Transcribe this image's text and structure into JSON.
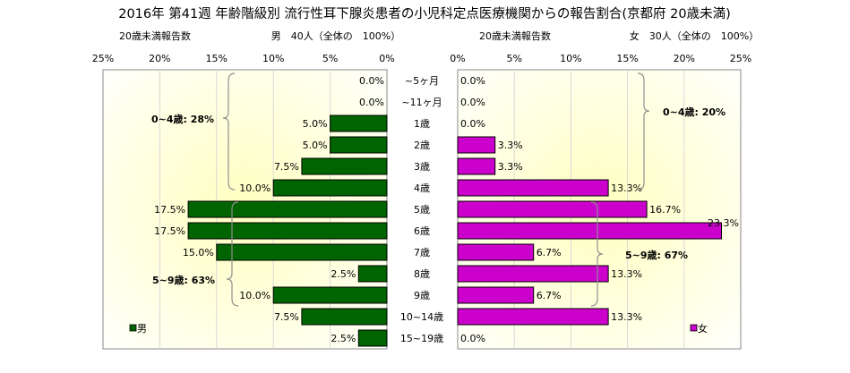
{
  "chart_data": {
    "type": "bar",
    "title": "2016年 第41週 年齢階級別 流行性耳下腺炎患者の小児科定点医療機関からの報告割合(京都府 20歳未満)",
    "categories": [
      "~5ヶ月",
      "~11ヶ月",
      "1歳",
      "2歳",
      "3歳",
      "4歳",
      "5歳",
      "6歳",
      "7歳",
      "8歳",
      "9歳",
      "10~14歳",
      "15~19歳"
    ],
    "xlim": [
      0,
      25
    ],
    "x_ticks": [
      "25%",
      "20%",
      "15%",
      "10%",
      "5%",
      "0%"
    ],
    "x_ticks_right": [
      "0%",
      "5%",
      "10%",
      "15%",
      "20%",
      "25%"
    ],
    "grid": true,
    "series": [
      {
        "name": "男",
        "panel": "left",
        "color": "#006400",
        "header_caption": "20歳未満報告数",
        "header_total": "男　40人（全体の　100%）",
        "values": [
          0.0,
          0.0,
          5.0,
          5.0,
          7.5,
          10.0,
          17.5,
          17.5,
          15.0,
          2.5,
          10.0,
          7.5,
          2.5
        ],
        "value_labels": [
          "0.0%",
          "0.0%",
          "5.0%",
          "5.0%",
          "7.5%",
          "10.0%",
          "17.5%",
          "17.5%",
          "15.0%",
          "2.5%",
          "10.0%",
          "7.5%",
          "2.5%"
        ]
      },
      {
        "name": "女",
        "panel": "right",
        "color": "#cc00cc",
        "header_caption": "20歳未満報告数",
        "header_total": "女　30人（全体の　100%）",
        "values": [
          0.0,
          0.0,
          0.0,
          3.3,
          3.3,
          13.3,
          16.7,
          23.3,
          6.7,
          13.3,
          6.7,
          13.3,
          0.0
        ],
        "value_labels": [
          "0.0%",
          "0.0%",
          "0.0%",
          "3.3%",
          "3.3%",
          "13.3%",
          "16.7%",
          "23.3%",
          "6.7%",
          "13.3%",
          "6.7%",
          "13.3%",
          "0.0%"
        ]
      }
    ],
    "annotations": {
      "male_group_0_4": "0~4歳: 28%",
      "male_group_5_9": "5~9歳: 63%",
      "female_group_0_4": "0~4歳: 20%",
      "female_group_5_9": "5~9歳: 67%"
    },
    "legend": {
      "male": "男",
      "female": "女",
      "placement": "bottom-corners"
    }
  },
  "colors": {
    "male": "#006400",
    "female": "#cc00cc",
    "plot_center": "#ffffc0",
    "plot_edge": "#ffffff"
  }
}
